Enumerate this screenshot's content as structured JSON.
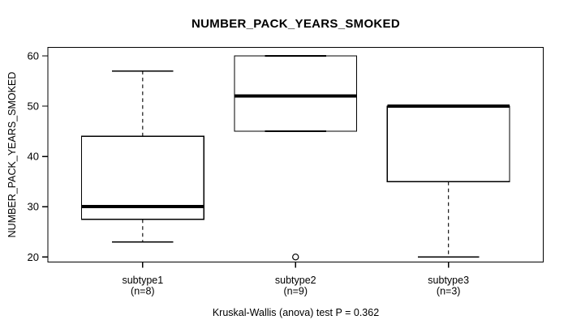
{
  "chart_data": {
    "type": "boxplot",
    "title": "NUMBER_PACK_YEARS_SMOKED",
    "ylabel": "NUMBER_PACK_YEARS_SMOKED",
    "xlabel": "",
    "caption": "Kruskal-Wallis (anova) test P = 0.362",
    "ylim": [
      19.0,
      61.7
    ],
    "yticks": [
      20,
      30,
      40,
      50,
      60
    ],
    "grid": false,
    "legend": "none",
    "colors": {
      "line": "#000000",
      "fill": "#ffffff",
      "background": "#ffffff"
    },
    "groups": [
      {
        "label": "subtype1",
        "sublabel": "(n=8)",
        "whisker_low": 23,
        "q1": 27.5,
        "median": 30,
        "q3": 44,
        "whisker_high": 57,
        "outliers": []
      },
      {
        "label": "subtype2",
        "sublabel": "(n=9)",
        "whisker_low": 45,
        "q1": 45,
        "median": 52,
        "q3": 60,
        "whisker_high": 60,
        "outliers": [
          20
        ]
      },
      {
        "label": "subtype3",
        "sublabel": "(n=3)",
        "whisker_low": 20,
        "q1": 35,
        "median": 50,
        "q3": 50,
        "whisker_high": 50,
        "outliers": []
      }
    ]
  }
}
